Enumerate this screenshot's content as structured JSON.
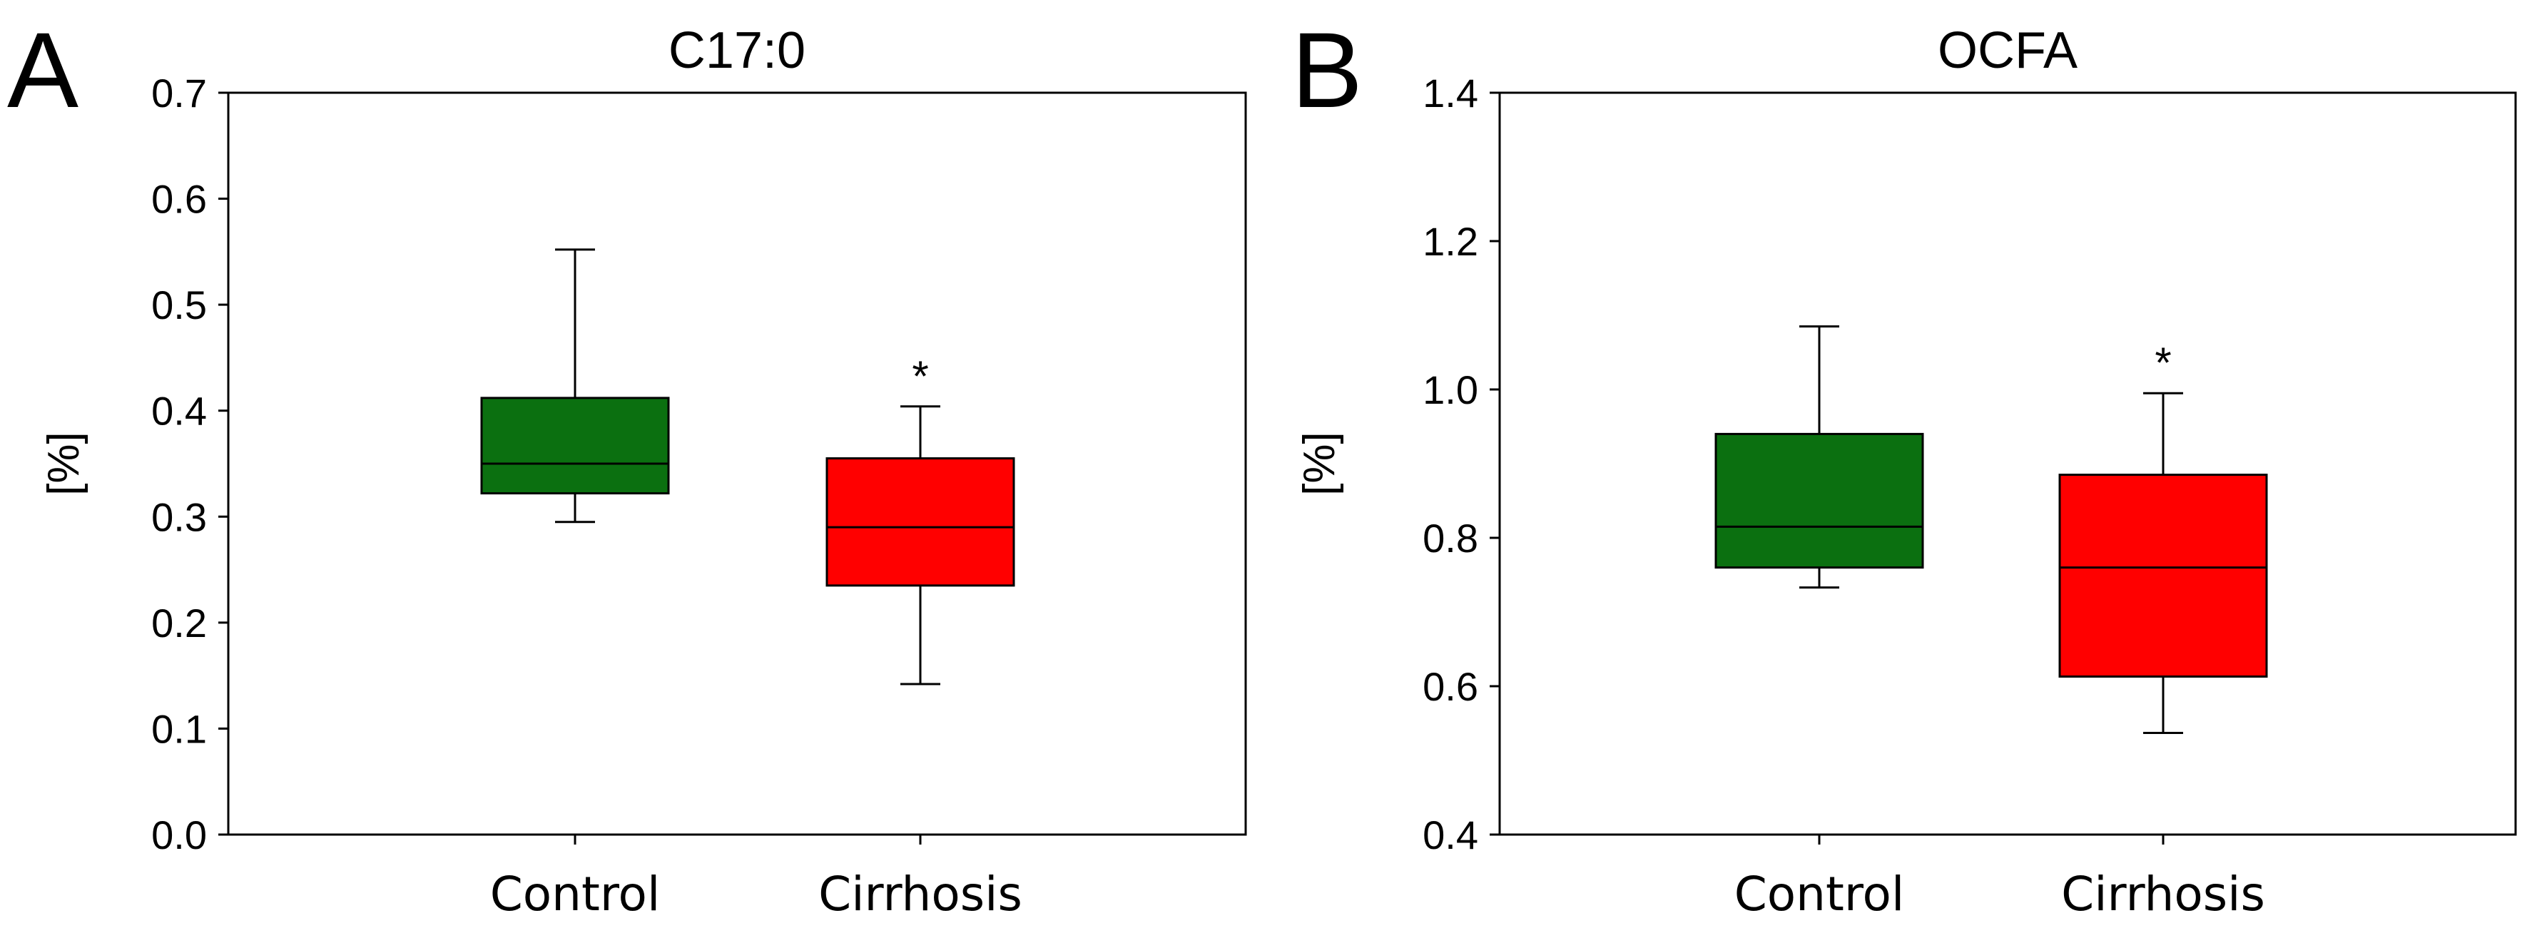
{
  "chart_data": [
    {
      "panel": "A",
      "type": "box",
      "title": "C17:0",
      "ylabel": "[%]",
      "xlabel": "",
      "ylim": [
        0.0,
        0.7
      ],
      "yticks": [
        "0.0",
        "0.1",
        "0.2",
        "0.3",
        "0.4",
        "0.5",
        "0.6",
        "0.7"
      ],
      "categories": [
        "Control",
        "Cirrhosis"
      ],
      "boxes": [
        {
          "name": "Control",
          "min": 0.295,
          "q1": 0.322,
          "median": 0.35,
          "q3": 0.412,
          "max": 0.552,
          "color": "#0b7010",
          "annotation": ""
        },
        {
          "name": "Cirrhosis",
          "min": 0.142,
          "q1": 0.235,
          "median": 0.29,
          "q3": 0.355,
          "max": 0.404,
          "color": "#ff0000",
          "annotation": "*"
        }
      ]
    },
    {
      "panel": "B",
      "type": "box",
      "title": "OCFA",
      "ylabel": "[%]",
      "xlabel": "",
      "ylim": [
        0.4,
        1.4
      ],
      "yticks": [
        "0.4",
        "0.6",
        "0.8",
        "1.0",
        "1.2",
        "1.4"
      ],
      "categories": [
        "Control",
        "Cirrhosis"
      ],
      "boxes": [
        {
          "name": "Control",
          "min": 0.733,
          "q1": 0.76,
          "median": 0.815,
          "q3": 0.94,
          "max": 1.085,
          "color": "#0b7010",
          "annotation": ""
        },
        {
          "name": "Cirrhosis",
          "min": 0.537,
          "q1": 0.613,
          "median": 0.76,
          "q3": 0.885,
          "max": 0.995,
          "color": "#ff0000",
          "annotation": "*"
        }
      ]
    }
  ]
}
